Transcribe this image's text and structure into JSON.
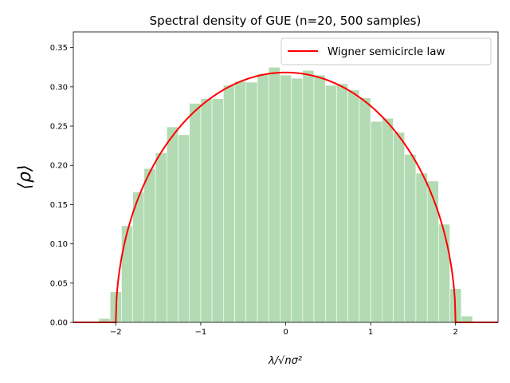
{
  "chart_data": {
    "type": "bar",
    "title": "Spectral density of GUE (n=20, 500 samples)",
    "xlabel": "λ/√nσ²",
    "ylabel": "⟨ρ⟩",
    "xlim": [
      -2.5,
      2.5
    ],
    "ylim": [
      0,
      0.37
    ],
    "xticks": [
      -2,
      -1,
      0,
      1,
      2
    ],
    "xtick_labels": [
      "−2",
      "−1",
      "0",
      "1",
      "2"
    ],
    "yticks": [
      0.0,
      0.05,
      0.1,
      0.15,
      0.2,
      0.25,
      0.3,
      0.35
    ],
    "ytick_labels": [
      "0.00",
      "0.05",
      "0.10",
      "0.15",
      "0.20",
      "0.25",
      "0.30",
      "0.35"
    ],
    "grid": false,
    "legend_position": "top-right",
    "histogram": {
      "color": "#b3dbb3",
      "bin_edges": [
        -2.2,
        -2.067,
        -1.933,
        -1.8,
        -1.667,
        -1.533,
        -1.4,
        -1.267,
        -1.133,
        -1.0,
        -0.867,
        -0.733,
        -0.6,
        -0.467,
        -0.333,
        -0.2,
        -0.067,
        0.067,
        0.2,
        0.333,
        0.467,
        0.6,
        0.733,
        0.867,
        1.0,
        1.133,
        1.267,
        1.4,
        1.533,
        1.667,
        1.8,
        1.933,
        2.067,
        2.2
      ],
      "values": [
        0.005,
        0.039,
        0.123,
        0.166,
        0.196,
        0.216,
        0.249,
        0.239,
        0.279,
        0.285,
        0.285,
        0.302,
        0.307,
        0.306,
        0.317,
        0.325,
        0.315,
        0.311,
        0.321,
        0.315,
        0.302,
        0.304,
        0.296,
        0.286,
        0.256,
        0.26,
        0.242,
        0.214,
        0.19,
        0.18,
        0.125,
        0.043,
        0.008
      ]
    },
    "series": [
      {
        "name": "Wigner semicircle law",
        "type": "line",
        "color": "#ff0000",
        "formula": "sqrt(4 - x^2) / (2*pi) for |x|<=2, else 0"
      }
    ]
  }
}
